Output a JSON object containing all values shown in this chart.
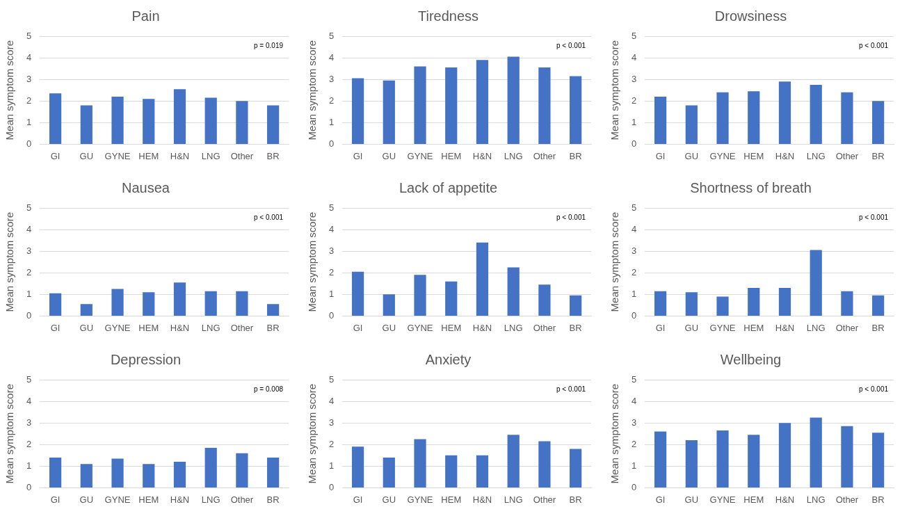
{
  "chart_data": [
    {
      "type": "bar",
      "title": "Pain",
      "ylabel": "Mean symptom score",
      "categories": [
        "GI",
        "GU",
        "GYNE",
        "HEM",
        "H&N",
        "LNG",
        "Other",
        "BR"
      ],
      "values": [
        2.35,
        1.8,
        2.2,
        2.1,
        2.55,
        2.15,
        2.0,
        1.8
      ],
      "color": "#4472c4",
      "ylim": [
        0,
        5
      ],
      "yticks": [
        0,
        1,
        2,
        3,
        4,
        5
      ],
      "grid": "y",
      "annotations": [
        "p = 0.019"
      ]
    },
    {
      "type": "bar",
      "title": "Tiredness",
      "ylabel": "Mean symptom score",
      "categories": [
        "GI",
        "GU",
        "GYNE",
        "HEM",
        "H&N",
        "LNG",
        "Other",
        "BR"
      ],
      "values": [
        3.05,
        2.95,
        3.6,
        3.55,
        3.9,
        4.05,
        3.55,
        3.15
      ],
      "color": "#4472c4",
      "ylim": [
        0,
        5
      ],
      "yticks": [
        0,
        1,
        2,
        3,
        4,
        5
      ],
      "grid": "y",
      "annotations": [
        "p < 0.001"
      ]
    },
    {
      "type": "bar",
      "title": "Drowsiness",
      "ylabel": "Mean symptom score",
      "categories": [
        "GI",
        "GU",
        "GYNE",
        "HEM",
        "H&N",
        "LNG",
        "Other",
        "BR"
      ],
      "values": [
        2.2,
        1.8,
        2.4,
        2.45,
        2.9,
        2.75,
        2.4,
        2.0
      ],
      "color": "#4472c4",
      "ylim": [
        0,
        5
      ],
      "yticks": [
        0,
        1,
        2,
        3,
        4,
        5
      ],
      "grid": "y",
      "annotations": [
        "p < 0.001"
      ]
    },
    {
      "type": "bar",
      "title": "Nausea",
      "ylabel": "Mean symptom score",
      "categories": [
        "GI",
        "GU",
        "GYNE",
        "HEM",
        "H&N",
        "LNG",
        "Other",
        "BR"
      ],
      "values": [
        1.05,
        0.55,
        1.25,
        1.1,
        1.55,
        1.15,
        1.15,
        0.55
      ],
      "color": "#4472c4",
      "ylim": [
        0,
        5
      ],
      "yticks": [
        0,
        1,
        2,
        3,
        4,
        5
      ],
      "grid": "y",
      "annotations": [
        "p < 0.001"
      ]
    },
    {
      "type": "bar",
      "title": "Lack of appetite",
      "ylabel": "Mean symptom score",
      "categories": [
        "GI",
        "GU",
        "GYNE",
        "HEM",
        "H&N",
        "LNG",
        "Other",
        "BR"
      ],
      "values": [
        2.05,
        1.0,
        1.9,
        1.6,
        3.4,
        2.25,
        1.45,
        0.95
      ],
      "color": "#4472c4",
      "ylim": [
        0,
        5
      ],
      "yticks": [
        0,
        1,
        2,
        3,
        4,
        5
      ],
      "grid": "y",
      "annotations": [
        "p < 0.001"
      ]
    },
    {
      "type": "bar",
      "title": "Shortness of breath",
      "ylabel": "Mean symptom score",
      "categories": [
        "GI",
        "GU",
        "GYNE",
        "HEM",
        "H&N",
        "LNG",
        "Other",
        "BR"
      ],
      "values": [
        1.15,
        1.1,
        0.9,
        1.3,
        1.3,
        3.05,
        1.15,
        0.95
      ],
      "color": "#4472c4",
      "ylim": [
        0,
        5
      ],
      "yticks": [
        0,
        1,
        2,
        3,
        4,
        5
      ],
      "grid": "y",
      "annotations": [
        "p < 0.001"
      ]
    },
    {
      "type": "bar",
      "title": "Depression",
      "ylabel": "Mean symptom score",
      "categories": [
        "GI",
        "GU",
        "GYNE",
        "HEM",
        "H&N",
        "LNG",
        "Other",
        "BR"
      ],
      "values": [
        1.4,
        1.1,
        1.35,
        1.1,
        1.2,
        1.85,
        1.6,
        1.4
      ],
      "color": "#4472c4",
      "ylim": [
        0,
        5
      ],
      "yticks": [
        0,
        1,
        2,
        3,
        4,
        5
      ],
      "grid": "y",
      "annotations": [
        "p = 0.008"
      ]
    },
    {
      "type": "bar",
      "title": "Anxiety",
      "ylabel": "Mean symptom score",
      "categories": [
        "GI",
        "GU",
        "GYNE",
        "HEM",
        "H&N",
        "LNG",
        "Other",
        "BR"
      ],
      "values": [
        1.9,
        1.4,
        2.25,
        1.5,
        1.5,
        2.45,
        2.15,
        1.8
      ],
      "color": "#4472c4",
      "ylim": [
        0,
        5
      ],
      "yticks": [
        0,
        1,
        2,
        3,
        4,
        5
      ],
      "grid": "y",
      "annotations": [
        "p < 0.001"
      ]
    },
    {
      "type": "bar",
      "title": "Wellbeing",
      "ylabel": "Mean symptom score",
      "categories": [
        "GI",
        "GU",
        "GYNE",
        "HEM",
        "H&N",
        "LNG",
        "Other",
        "BR"
      ],
      "values": [
        2.6,
        2.2,
        2.65,
        2.45,
        3.0,
        3.25,
        2.85,
        2.55
      ],
      "color": "#4472c4",
      "ylim": [
        0,
        5
      ],
      "yticks": [
        0,
        1,
        2,
        3,
        4,
        5
      ],
      "grid": "y",
      "annotations": [
        "p < 0.001"
      ]
    }
  ]
}
